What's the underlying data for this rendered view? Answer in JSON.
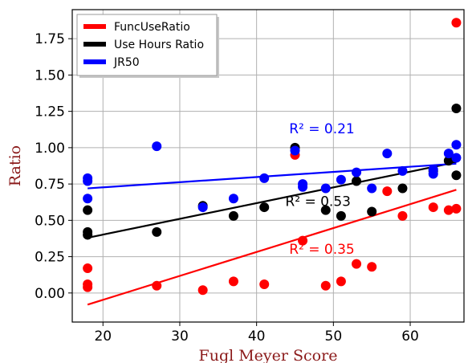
{
  "chart_data": {
    "type": "scatter",
    "xlabel": "Fugl Meyer Score",
    "ylabel": "Ratio",
    "xlim": [
      16,
      67
    ],
    "ylim": [
      -0.2,
      1.95
    ],
    "xticks": [
      "20",
      "30",
      "40",
      "50",
      "60"
    ],
    "yticks": [
      "0.00",
      "0.25",
      "0.50",
      "0.75",
      "1.00",
      "1.25",
      "1.50",
      "1.75"
    ],
    "xtick_values": [
      20,
      30,
      40,
      50,
      60
    ],
    "ytick_values": [
      0,
      0.25,
      0.5,
      0.75,
      1.0,
      1.25,
      1.5,
      1.75
    ],
    "grid": true,
    "legend_position": "top-left",
    "series": [
      {
        "name": "FuncUseRatio",
        "color": "#ff0000",
        "points": [
          [
            18,
            0.17
          ],
          [
            18,
            0.06
          ],
          [
            18,
            0.04
          ],
          [
            27,
            0.05
          ],
          [
            33,
            0.02
          ],
          [
            37,
            0.08
          ],
          [
            41,
            0.06
          ],
          [
            45,
            0.95
          ],
          [
            46,
            0.36
          ],
          [
            49,
            0.05
          ],
          [
            51,
            0.08
          ],
          [
            53,
            0.2
          ],
          [
            55,
            0.18
          ],
          [
            57,
            0.7
          ],
          [
            59,
            0.53
          ],
          [
            63,
            0.59
          ],
          [
            65,
            0.57
          ],
          [
            66,
            0.58
          ],
          [
            66,
            1.86
          ]
        ],
        "fit": {
          "x": [
            18,
            66
          ],
          "y": [
            -0.08,
            0.71
          ]
        },
        "r2_label": "R² = 0.35",
        "r2_at": [
          48.5,
          0.27
        ]
      },
      {
        "name": "Use Hours Ratio",
        "color": "#000000",
        "points": [
          [
            18,
            0.57
          ],
          [
            18,
            0.42
          ],
          [
            18,
            0.4
          ],
          [
            27,
            0.42
          ],
          [
            33,
            0.6
          ],
          [
            37,
            0.53
          ],
          [
            41,
            0.59
          ],
          [
            45,
            1.0
          ],
          [
            49,
            0.57
          ],
          [
            51,
            0.53
          ],
          [
            53,
            0.77
          ],
          [
            55,
            0.56
          ],
          [
            59,
            0.72
          ],
          [
            63,
            0.84
          ],
          [
            65,
            0.91
          ],
          [
            66,
            0.81
          ],
          [
            66,
            1.27
          ]
        ],
        "fit": {
          "x": [
            18,
            66
          ],
          "y": [
            0.38,
            0.9
          ]
        },
        "r2_label": "R² = 0.53",
        "r2_at": [
          48,
          0.6
        ]
      },
      {
        "name": "JR50",
        "color": "#0000ff",
        "points": [
          [
            18,
            0.79
          ],
          [
            18,
            0.77
          ],
          [
            18,
            0.65
          ],
          [
            27,
            1.01
          ],
          [
            33,
            0.59
          ],
          [
            37,
            0.65
          ],
          [
            41,
            0.79
          ],
          [
            45,
            0.98
          ],
          [
            46,
            0.75
          ],
          [
            46,
            0.73
          ],
          [
            49,
            0.72
          ],
          [
            51,
            0.78
          ],
          [
            53,
            0.83
          ],
          [
            55,
            0.72
          ],
          [
            57,
            0.96
          ],
          [
            59,
            0.84
          ],
          [
            63,
            0.82
          ],
          [
            63,
            0.85
          ],
          [
            65,
            0.96
          ],
          [
            66,
            0.93
          ],
          [
            66,
            1.02
          ]
        ],
        "fit": {
          "x": [
            18,
            66
          ],
          "y": [
            0.72,
            0.89
          ]
        },
        "r2_label": "R² = 0.21",
        "r2_at": [
          48.5,
          1.1
        ]
      }
    ]
  }
}
